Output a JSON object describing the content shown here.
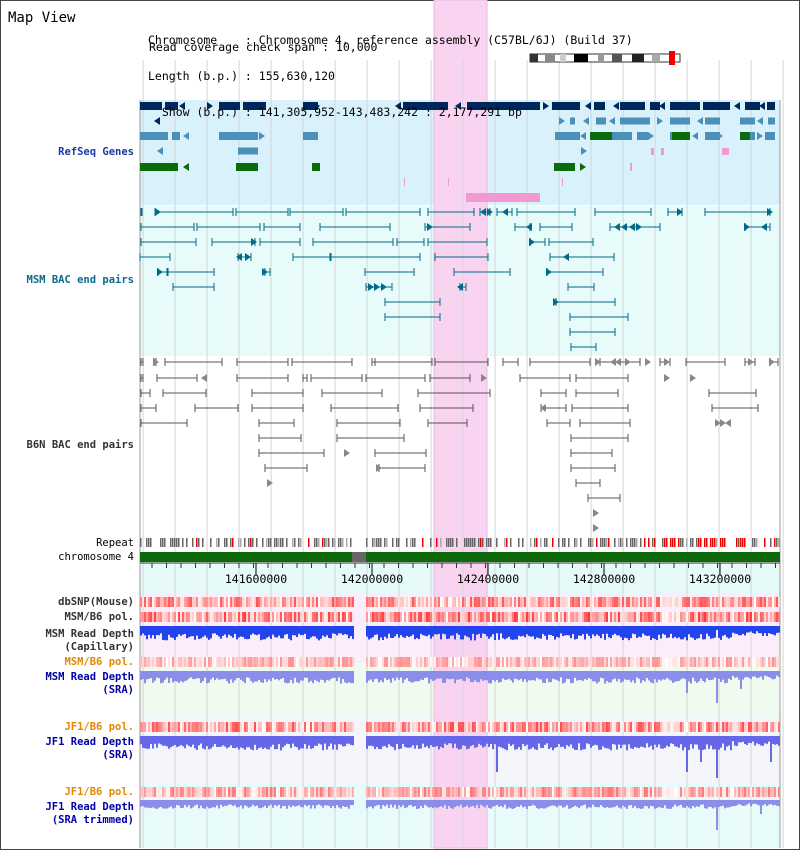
{
  "title": "Map View",
  "info": {
    "chromosome": "Chromosome    : Chromosome 4, reference assembly (C57BL/6J) (Build 37)",
    "length": "Length (b.p.) : 155,630,120",
    "show": "  Show (b.p.) : 141,305,952-143,483,242 : 2,177,291 bp",
    "read_check": "Read coverage check span : 10,000"
  },
  "tracks": {
    "refseq": "RefSeq Genes",
    "msm_bac": "MSM BAC end pairs",
    "b6n_bac": "B6N BAC end pairs",
    "repeat": "Repeat",
    "chromosome": "chromosome 4",
    "dbsnp": "dbSNP(Mouse)",
    "msm_b6_pol": "MSM/B6 pol.",
    "msm_depth_cap_1": "MSM Read Depth",
    "msm_depth_cap_2": "(Capillary)",
    "msm_b6_pol_sra": "MSM/B6 pol.",
    "msm_depth_sra_1": "MSM Read Depth",
    "msm_depth_sra_2": "(SRA)",
    "jf1_b6_pol": "JF1/B6 pol.",
    "jf1_depth_1": "JF1 Read Depth",
    "jf1_depth_2": "(SRA)",
    "jf1_b6_pol_trim": "JF1/B6 pol.",
    "jf1_trim_1": "JF1 Read Depth",
    "jf1_trim_2": "(SRA trimmed)"
  },
  "axis": {
    "ticks": [
      "141600000",
      "142000000",
      "142400000",
      "142800000",
      "143200000"
    ]
  },
  "colors": {
    "refseq_bg": "#d9f1fb",
    "bac_bg": "#e8fbfb",
    "highlight": "#f8d4f0",
    "navy": "#00275c",
    "steel": "#4a90b8",
    "green": "#0a6b0a",
    "pink": "#f29ad0",
    "teal": "#006a8a",
    "gray": "#555555",
    "orange": "#e08a00",
    "blue_label": "#0000aa"
  }
}
